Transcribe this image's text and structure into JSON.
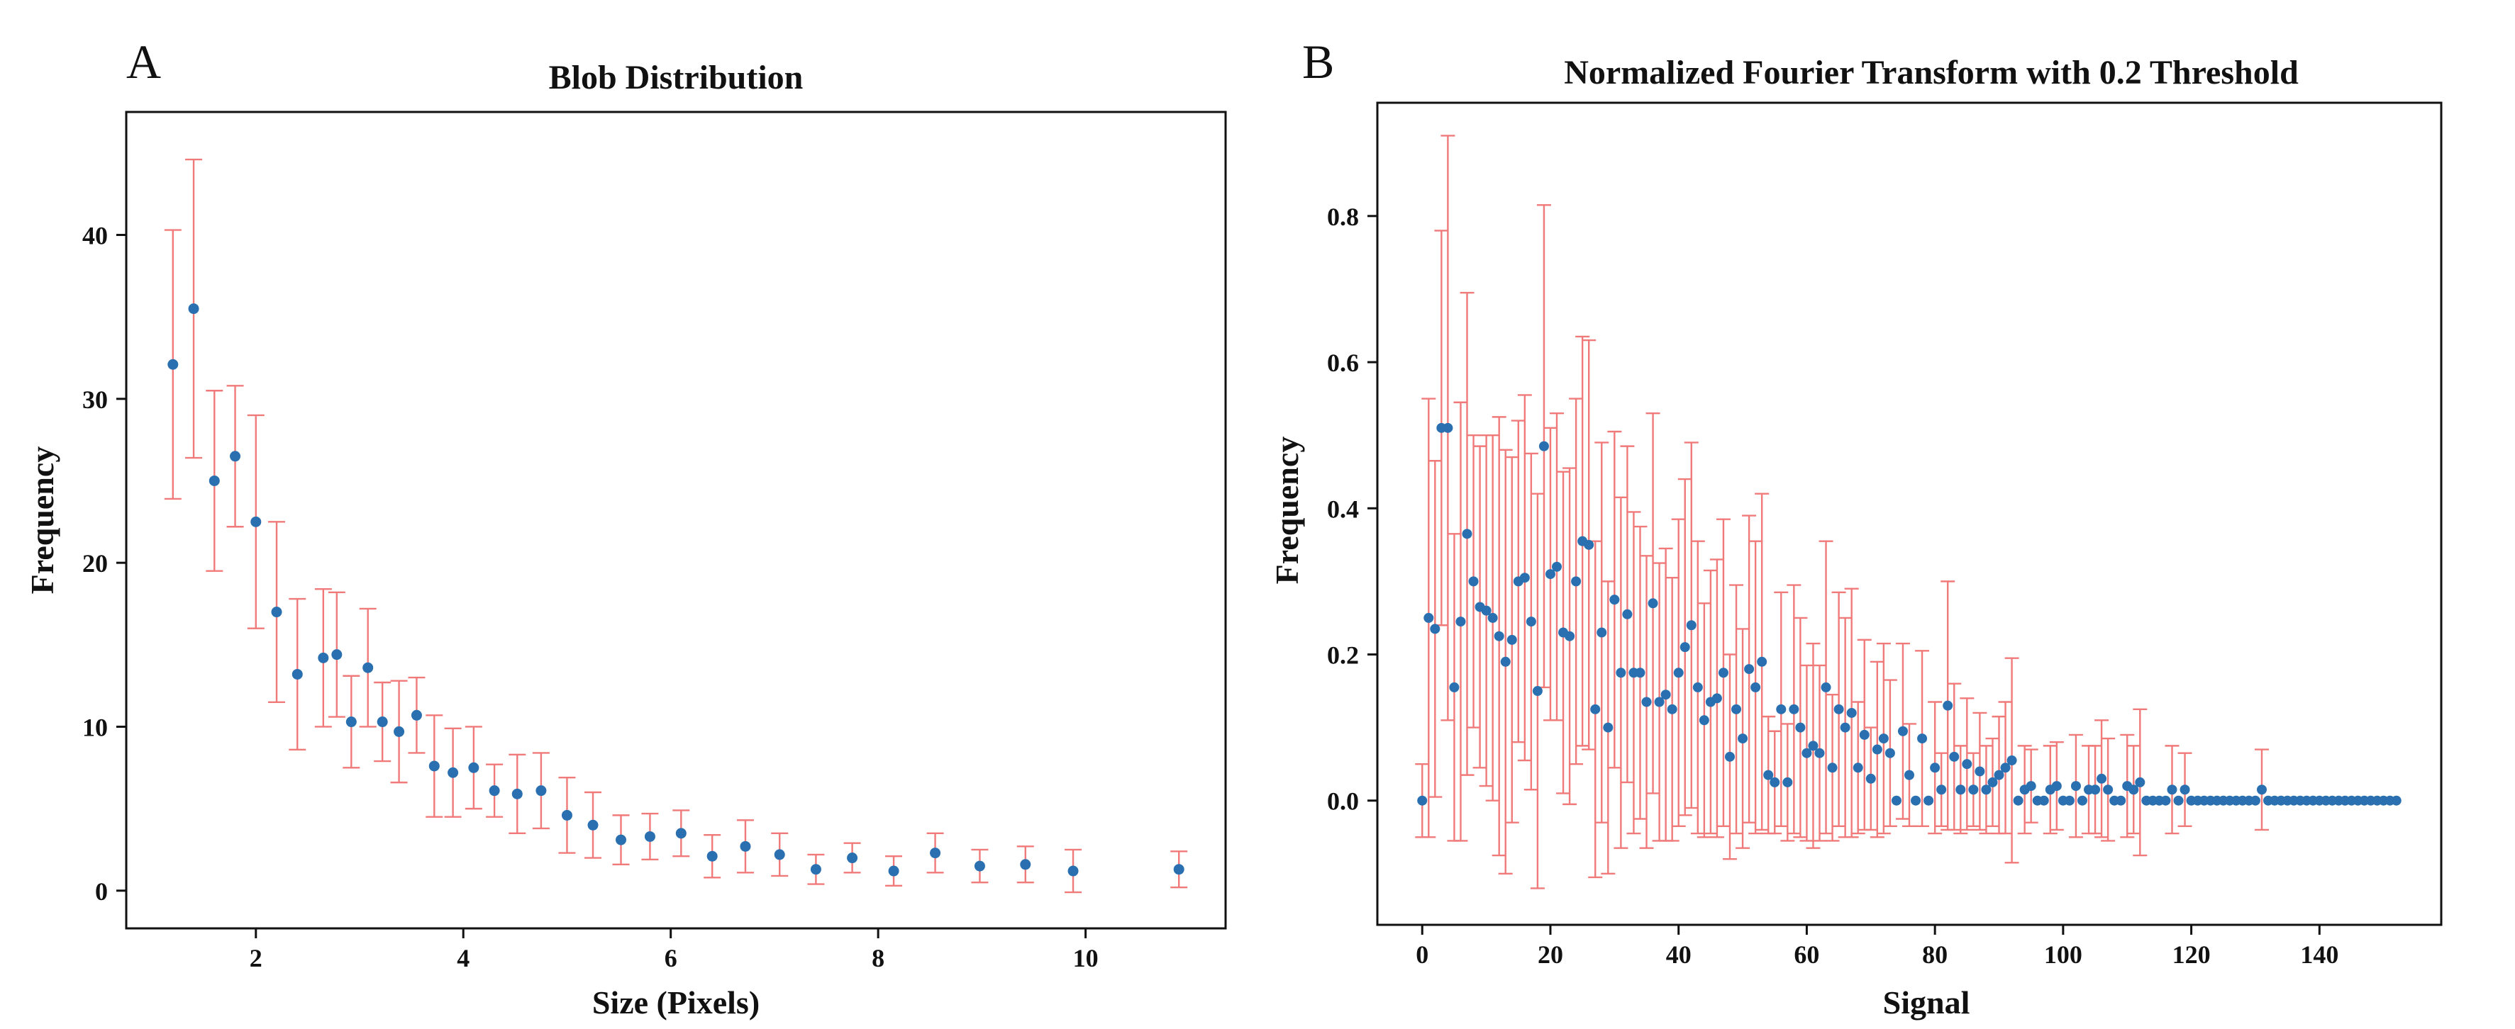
{
  "figure": {
    "panel_letters": [
      "A",
      "B"
    ]
  },
  "style": {
    "marker_color": "#2a6fb0",
    "errorbar_color": "#f07a7a",
    "axis_color": "#111111"
  },
  "chart_data": [
    {
      "type": "scatter",
      "panel": "A",
      "title": "Blob Distribution",
      "xlabel": "Size (Pixels)",
      "ylabel": "Frequency",
      "xlim": [
        0.75,
        11.35
      ],
      "ylim": [
        -2.3,
        47.5
      ],
      "xticks": [
        2,
        4,
        6,
        8,
        10
      ],
      "yticks": [
        0,
        10,
        20,
        30,
        40
      ],
      "grid": false,
      "legend": "none",
      "series": [
        {
          "x": [
            1.2,
            1.4,
            1.6,
            1.8,
            2.0,
            2.2,
            2.4,
            2.65,
            2.78,
            2.92,
            3.08,
            3.22,
            3.38,
            3.55,
            3.72,
            3.9,
            4.1,
            4.3,
            4.52,
            4.75,
            5.0,
            5.25,
            5.52,
            5.8,
            6.1,
            6.4,
            6.72,
            7.05,
            7.4,
            7.75,
            8.15,
            8.55,
            8.98,
            9.42,
            9.88,
            10.9
          ],
          "y": [
            32.1,
            35.5,
            25.0,
            26.5,
            22.5,
            17.0,
            13.2,
            14.2,
            14.4,
            10.3,
            13.6,
            10.3,
            9.7,
            10.7,
            7.6,
            7.2,
            7.5,
            6.1,
            5.9,
            6.1,
            4.6,
            4.0,
            3.1,
            3.3,
            3.5,
            2.1,
            2.7,
            2.2,
            1.3,
            2.0,
            1.2,
            2.3,
            1.5,
            1.6,
            1.2,
            1.3
          ],
          "yerr": [
            8.2,
            9.1,
            5.5,
            4.3,
            6.5,
            5.5,
            4.6,
            4.2,
            3.8,
            2.8,
            3.6,
            2.4,
            3.1,
            2.3,
            3.1,
            2.7,
            2.5,
            1.6,
            2.4,
            2.3,
            2.3,
            2.0,
            1.5,
            1.4,
            1.4,
            1.3,
            1.6,
            1.3,
            0.9,
            0.9,
            0.9,
            1.2,
            1.0,
            1.1,
            1.3,
            1.1
          ]
        }
      ]
    },
    {
      "type": "scatter",
      "panel": "B",
      "title": "Normalized Fourier Transform with 0.2 Threshold",
      "xlabel": "Signal",
      "ylabel": "Frequency",
      "xlim": [
        -7,
        159
      ],
      "ylim": [
        -0.17,
        0.955
      ],
      "xticks": [
        0,
        20,
        40,
        60,
        80,
        100,
        120,
        140
      ],
      "yticks": [
        0.0,
        0.2,
        0.4,
        0.6,
        0.8
      ],
      "grid": false,
      "legend": "none",
      "series": [
        {
          "x": [
            0,
            1,
            2,
            3,
            4,
            5,
            6,
            7,
            8,
            9,
            10,
            11,
            12,
            13,
            14,
            15,
            16,
            17,
            18,
            19,
            20,
            21,
            22,
            23,
            24,
            25,
            26,
            27,
            28,
            29,
            30,
            31,
            32,
            33,
            34,
            35,
            36,
            37,
            38,
            39,
            40,
            41,
            42,
            43,
            44,
            45,
            46,
            47,
            48,
            49,
            50,
            51,
            52,
            53,
            54,
            55,
            56,
            57,
            58,
            59,
            60,
            61,
            62,
            63,
            64,
            65,
            66,
            67,
            68,
            69,
            70,
            71,
            72,
            73,
            74,
            75,
            76,
            77,
            78,
            79,
            80,
            81,
            82,
            83,
            84,
            85,
            86,
            87,
            88,
            89,
            90,
            91,
            92,
            93,
            94,
            95,
            96,
            97,
            98,
            99,
            100,
            101,
            102,
            103,
            104,
            105,
            106,
            107,
            108,
            109,
            110,
            111,
            112,
            113,
            114,
            115,
            116,
            117,
            118,
            119,
            120,
            121,
            122,
            123,
            124,
            125,
            126,
            127,
            128,
            129,
            130,
            131,
            132,
            133,
            134,
            135,
            136,
            137,
            138,
            139,
            140,
            141,
            142,
            143,
            144,
            145,
            146,
            147,
            148,
            149,
            150,
            151,
            152
          ],
          "y": [
            0.0,
            0.25,
            0.235,
            0.51,
            0.51,
            0.155,
            0.245,
            0.365,
            0.3,
            0.265,
            0.26,
            0.25,
            0.225,
            0.19,
            0.22,
            0.3,
            0.305,
            0.245,
            0.15,
            0.485,
            0.31,
            0.32,
            0.23,
            0.225,
            0.3,
            0.355,
            0.35,
            0.125,
            0.23,
            0.1,
            0.275,
            0.175,
            0.255,
            0.175,
            0.175,
            0.135,
            0.27,
            0.135,
            0.145,
            0.125,
            0.175,
            0.21,
            0.24,
            0.155,
            0.11,
            0.135,
            0.14,
            0.175,
            0.06,
            0.125,
            0.085,
            0.18,
            0.155,
            0.19,
            0.035,
            0.025,
            0.125,
            0.025,
            0.125,
            0.1,
            0.065,
            0.075,
            0.065,
            0.155,
            0.045,
            0.125,
            0.1,
            0.12,
            0.045,
            0.09,
            0.03,
            0.07,
            0.085,
            0.065,
            0.0,
            0.095,
            0.035,
            0.0,
            0.085,
            0.0,
            0.045,
            0.015,
            0.13,
            0.06,
            0.015,
            0.05,
            0.015,
            0.04,
            0.015,
            0.025,
            0.035,
            0.045,
            0.055,
            0.0,
            0.015,
            0.02,
            0.0,
            0.0,
            0.015,
            0.02,
            0.0,
            0.0,
            0.02,
            0.0,
            0.015,
            0.015,
            0.03,
            0.015,
            0.0,
            0.0,
            0.02,
            0.015,
            0.025,
            0.0,
            0.0,
            0.0,
            0.0,
            0.015,
            0.0,
            0.015,
            0.0,
            0.0,
            0.0,
            0.0,
            0.0,
            0.0,
            0.0,
            0.0,
            0.0,
            0.0,
            0.0,
            0.015,
            0.0,
            0.0,
            0.0,
            0.0,
            0.0,
            0.0,
            0.0,
            0.0,
            0.0,
            0.0,
            0.0,
            0.0,
            0.0,
            0.0,
            0.0,
            0.0,
            0.0,
            0.0,
            0.0,
            0.0,
            0.0
          ],
          "yerr": [
            0.05,
            0.3,
            0.23,
            0.27,
            0.4,
            0.21,
            0.3,
            0.33,
            0.2,
            0.22,
            0.24,
            0.25,
            0.3,
            0.29,
            0.25,
            0.22,
            0.25,
            0.23,
            0.27,
            0.33,
            0.2,
            0.21,
            0.22,
            0.23,
            0.25,
            0.28,
            0.28,
            0.23,
            0.26,
            0.2,
            0.23,
            0.24,
            0.23,
            0.22,
            0.2,
            0.2,
            0.26,
            0.19,
            0.2,
            0.18,
            0.21,
            0.23,
            0.25,
            0.2,
            0.16,
            0.18,
            0.19,
            0.21,
            0.14,
            0.17,
            0.15,
            0.21,
            0.2,
            0.23,
            0.08,
            0.07,
            0.16,
            0.08,
            0.17,
            0.15,
            0.12,
            0.14,
            0.12,
            0.2,
            0.1,
            0.16,
            0.15,
            0.17,
            0.09,
            0.13,
            0.07,
            0.12,
            0.13,
            0.1,
            0.0,
            0.12,
            0.07,
            0.0,
            0.12,
            0.0,
            0.09,
            0.05,
            0.17,
            0.1,
            0.06,
            0.09,
            0.05,
            0.08,
            0.06,
            0.06,
            0.08,
            0.09,
            0.14,
            0.0,
            0.06,
            0.05,
            0.0,
            0.0,
            0.06,
            0.06,
            0.0,
            0.0,
            0.07,
            0.0,
            0.06,
            0.06,
            0.08,
            0.07,
            0.0,
            0.0,
            0.07,
            0.06,
            0.1,
            0.0,
            0.0,
            0.0,
            0.0,
            0.06,
            0.0,
            0.05,
            0.0,
            0.0,
            0.0,
            0.0,
            0.0,
            0.0,
            0.0,
            0.0,
            0.0,
            0.0,
            0.0,
            0.055,
            0.0,
            0.0,
            0.0,
            0.0,
            0.0,
            0.0,
            0.0,
            0.0,
            0.0,
            0.0,
            0.0,
            0.0,
            0.0,
            0.0,
            0.0,
            0.0,
            0.0,
            0.0,
            0.0,
            0.0,
            0.0
          ]
        }
      ]
    }
  ]
}
